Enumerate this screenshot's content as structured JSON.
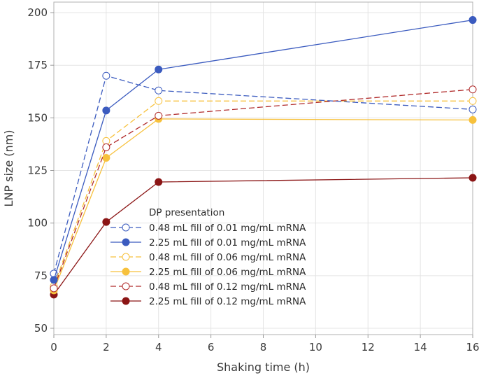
{
  "chart_data": {
    "type": "line",
    "title": "",
    "xlabel": "Shaking time (h)",
    "ylabel": "LNP size (nm)",
    "xlim": [
      0,
      16
    ],
    "ylim": [
      47,
      205
    ],
    "xticks": [
      0,
      2,
      4,
      6,
      8,
      10,
      12,
      14,
      16
    ],
    "yticks": [
      50,
      75,
      100,
      125,
      150,
      175,
      200
    ],
    "grid": true,
    "legend": {
      "title": "DP presentation",
      "placement": "center-left"
    },
    "x": [
      0,
      2,
      4,
      16
    ],
    "series": [
      {
        "name": "0.48 mL fill of 0.01 mg/mL mRNA",
        "color": "#3b5bbf",
        "dashed": true,
        "filled": false,
        "values": [
          76,
          170,
          163,
          154
        ]
      },
      {
        "name": "2.25 mL fill of 0.01 mg/mL mRNA",
        "color": "#3b5bbf",
        "dashed": false,
        "filled": true,
        "values": [
          73,
          153.5,
          173,
          196.5
        ]
      },
      {
        "name": "0.48 mL fill of 0.06 mg/mL mRNA",
        "color": "#f7c13c",
        "dashed": true,
        "filled": false,
        "values": [
          70,
          139,
          158,
          158
        ]
      },
      {
        "name": "2.25 mL fill of 0.06 mg/mL mRNA",
        "color": "#f7c13c",
        "dashed": false,
        "filled": true,
        "values": [
          68,
          131,
          149.5,
          149
        ]
      },
      {
        "name": "0.48 mL fill of 0.12 mg/mL mRNA",
        "color": "#b02a2a",
        "dashed": true,
        "filled": false,
        "values": [
          69,
          136,
          151,
          163.5
        ]
      },
      {
        "name": "2.25 mL fill of 0.12 mg/mL mRNA",
        "color": "#8b1515",
        "dashed": false,
        "filled": true,
        "values": [
          66,
          100.5,
          119.5,
          121.5
        ]
      }
    ]
  }
}
